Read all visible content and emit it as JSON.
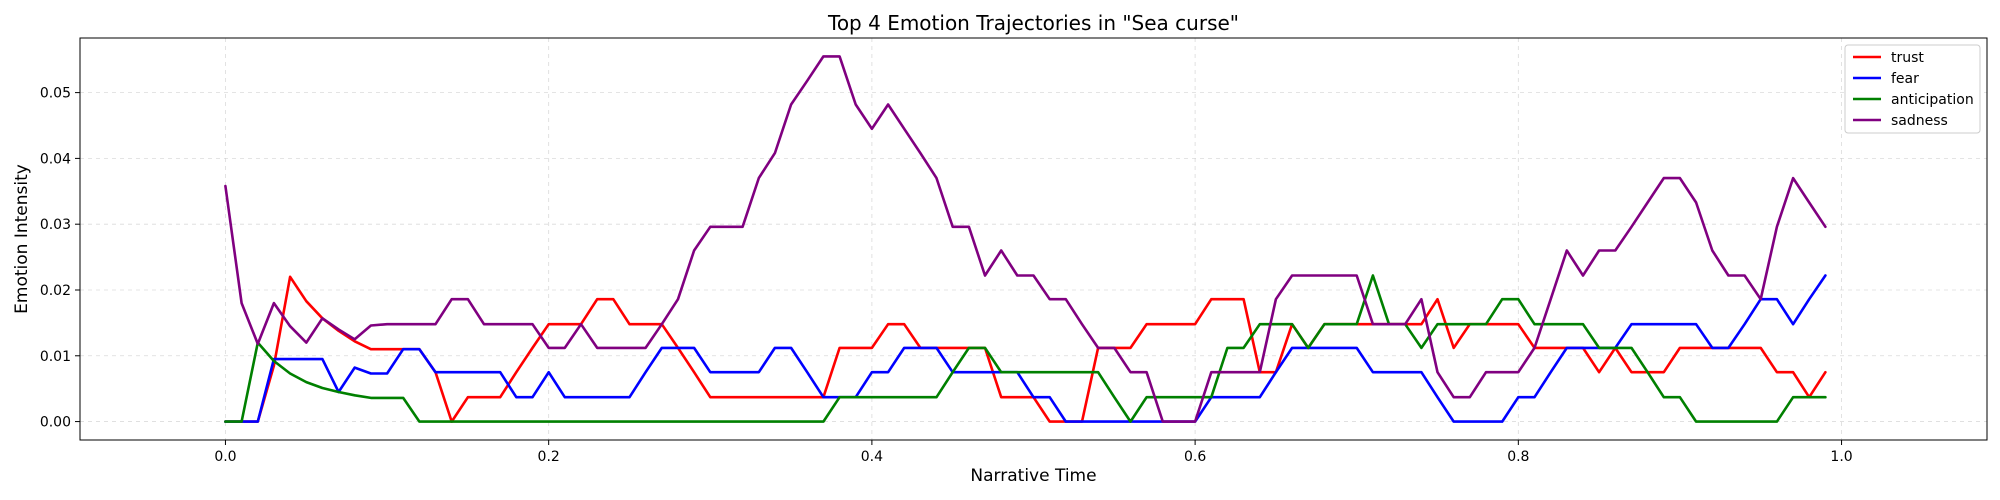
{
  "chart_data": {
    "type": "line",
    "title": "Top 4 Emotion Trajectories in \"Sea curse\"",
    "xlabel": "Narrative Time",
    "ylabel": "Emotion Intensity",
    "xlim": [
      -0.09,
      1.09
    ],
    "ylim": [
      -0.0028,
      0.0583
    ],
    "xticks": [
      0.0,
      0.2,
      0.4,
      0.6,
      0.8,
      1.0
    ],
    "xtick_labels": [
      "0.0",
      "0.2",
      "0.4",
      "0.6",
      "0.8",
      "1.0"
    ],
    "yticks": [
      0.0,
      0.01,
      0.02,
      0.03,
      0.04,
      0.05
    ],
    "ytick_labels": [
      "0.00",
      "0.01",
      "0.02",
      "0.03",
      "0.04",
      "0.05"
    ],
    "grid": true,
    "legend_position": "top-right",
    "x": [
      0.0,
      0.01,
      0.02,
      0.03,
      0.04,
      0.05,
      0.06,
      0.07,
      0.08,
      0.09,
      0.1,
      0.11,
      0.12,
      0.13,
      0.14,
      0.15,
      0.16,
      0.17,
      0.18,
      0.19,
      0.2,
      0.21,
      0.22,
      0.23,
      0.24,
      0.25,
      0.26,
      0.27,
      0.28,
      0.29,
      0.3,
      0.31,
      0.32,
      0.33,
      0.34,
      0.35,
      0.36,
      0.37,
      0.38,
      0.39,
      0.4,
      0.41,
      0.42,
      0.43,
      0.44,
      0.45,
      0.46,
      0.47,
      0.48,
      0.49,
      0.5,
      0.51,
      0.52,
      0.53,
      0.54,
      0.55,
      0.56,
      0.57,
      0.58,
      0.59,
      0.6,
      0.61,
      0.62,
      0.63,
      0.64,
      0.65,
      0.66,
      0.67,
      0.68,
      0.69,
      0.7,
      0.71,
      0.72,
      0.73,
      0.74,
      0.75,
      0.76,
      0.77,
      0.78,
      0.79,
      0.8,
      0.81,
      0.82,
      0.83,
      0.84,
      0.85,
      0.86,
      0.87,
      0.88,
      0.89,
      0.9,
      0.91,
      0.92,
      0.93,
      0.94,
      0.95,
      0.96,
      0.97,
      0.98,
      0.99
    ],
    "series": [
      {
        "name": "trust",
        "color": "#ff0000",
        "values": [
          0,
          0,
          0,
          0.0085,
          0.022,
          0.0183,
          0.0157,
          0.0138,
          0.0122,
          0.011,
          0.011,
          0.011,
          0.011,
          0.0075,
          0,
          0.0037,
          0.0037,
          0.0037,
          0.0075,
          0.0112,
          0.0148,
          0.0148,
          0.0148,
          0.0186,
          0.0186,
          0.0148,
          0.0148,
          0.0148,
          0.0112,
          0.0075,
          0.0037,
          0.0037,
          0.0037,
          0.0037,
          0.0037,
          0.0037,
          0.0037,
          0.0037,
          0.0112,
          0.0112,
          0.0112,
          0.0148,
          0.0148,
          0.0112,
          0.0112,
          0.0112,
          0.0112,
          0.0112,
          0.0037,
          0.0037,
          0.0037,
          0,
          0,
          0,
          0.0112,
          0.0112,
          0.0112,
          0.0148,
          0.0148,
          0.0148,
          0.0148,
          0.0186,
          0.0186,
          0.0186,
          0.0075,
          0.0075,
          0.0148,
          0.0112,
          0.0148,
          0.0148,
          0.0148,
          0.0148,
          0.0148,
          0.0148,
          0.0148,
          0.0186,
          0.0112,
          0.0148,
          0.0148,
          0.0148,
          0.0148,
          0.0112,
          0.0112,
          0.0112,
          0.0112,
          0.0075,
          0.0112,
          0.0075,
          0.0075,
          0.0075,
          0.0112,
          0.0112,
          0.0112,
          0.0112,
          0.0112,
          0.0112,
          0.0075,
          0.0075,
          0.0037,
          0.0075
        ]
      },
      {
        "name": "fear",
        "color": "#0000ff",
        "values": [
          0,
          0,
          0,
          0.0095,
          0.0095,
          0.0095,
          0.0095,
          0.0045,
          0.0082,
          0.0073,
          0.0073,
          0.011,
          0.011,
          0.0075,
          0.0075,
          0.0075,
          0.0075,
          0.0075,
          0.0037,
          0.0037,
          0.0075,
          0.0037,
          0.0037,
          0.0037,
          0.0037,
          0.0037,
          0.0075,
          0.0112,
          0.0112,
          0.0112,
          0.0075,
          0.0075,
          0.0075,
          0.0075,
          0.0112,
          0.0112,
          0.0075,
          0.0037,
          0.0037,
          0.0037,
          0.0075,
          0.0075,
          0.0112,
          0.0112,
          0.0112,
          0.0075,
          0.0075,
          0.0075,
          0.0075,
          0.0075,
          0.0037,
          0.0037,
          0,
          0,
          0,
          0,
          0,
          0,
          0,
          0,
          0,
          0.0037,
          0.0037,
          0.0037,
          0.0037,
          0.0075,
          0.0112,
          0.0112,
          0.0112,
          0.0112,
          0.0112,
          0.0075,
          0.0075,
          0.0075,
          0.0075,
          0.0037,
          0,
          0,
          0,
          0,
          0.0037,
          0.0037,
          0.0075,
          0.0112,
          0.0112,
          0.0112,
          0.0112,
          0.0148,
          0.0148,
          0.0148,
          0.0148,
          0.0148,
          0.0112,
          0.0112,
          0.0148,
          0.0186,
          0.0186,
          0.0148,
          0.0186,
          0.0222
        ]
      },
      {
        "name": "anticipation",
        "color": "#008000",
        "values": [
          0,
          0,
          0.012,
          0.0092,
          0.0073,
          0.006,
          0.0051,
          0.0045,
          0.004,
          0.0036,
          0.0036,
          0.0036,
          0,
          0,
          0,
          0,
          0,
          0,
          0,
          0,
          0,
          0,
          0,
          0,
          0,
          0,
          0,
          0,
          0,
          0,
          0,
          0,
          0,
          0,
          0,
          0,
          0,
          0,
          0.0037,
          0.0037,
          0.0037,
          0.0037,
          0.0037,
          0.0037,
          0.0037,
          0.0075,
          0.0112,
          0.0112,
          0.0075,
          0.0075,
          0.0075,
          0.0075,
          0.0075,
          0.0075,
          0.0075,
          0.0037,
          0,
          0.0037,
          0.0037,
          0.0037,
          0.0037,
          0.0037,
          0.0112,
          0.0112,
          0.0148,
          0.0148,
          0.0148,
          0.0112,
          0.0148,
          0.0148,
          0.0148,
          0.0222,
          0.0148,
          0.0148,
          0.0112,
          0.0148,
          0.0148,
          0.0148,
          0.0148,
          0.0186,
          0.0186,
          0.0148,
          0.0148,
          0.0148,
          0.0148,
          0.0112,
          0.0112,
          0.0112,
          0.0075,
          0.0037,
          0.0037,
          0,
          0,
          0,
          0,
          0,
          0,
          0.0037,
          0.0037,
          0.0037
        ]
      },
      {
        "name": "sadness",
        "color": "#800080",
        "values": [
          0.0358,
          0.018,
          0.0118,
          0.018,
          0.0145,
          0.012,
          0.0157,
          0.014,
          0.0125,
          0.0146,
          0.0148,
          0.0148,
          0.0148,
          0.0148,
          0.0186,
          0.0186,
          0.0148,
          0.0148,
          0.0148,
          0.0148,
          0.0112,
          0.0112,
          0.0148,
          0.0112,
          0.0112,
          0.0112,
          0.0112,
          0.0148,
          0.0186,
          0.026,
          0.0296,
          0.0296,
          0.0296,
          0.037,
          0.0408,
          0.0482,
          0.0518,
          0.0555,
          0.0555,
          0.0482,
          0.0445,
          0.0482,
          0.0445,
          0.0408,
          0.037,
          0.0296,
          0.0296,
          0.0222,
          0.026,
          0.0222,
          0.0222,
          0.0186,
          0.0186,
          0.0148,
          0.0112,
          0.0112,
          0.0075,
          0.0075,
          0,
          0,
          0,
          0.0075,
          0.0075,
          0.0075,
          0.0075,
          0.0186,
          0.0222,
          0.0222,
          0.0222,
          0.0222,
          0.0222,
          0.0148,
          0.0148,
          0.0148,
          0.0186,
          0.0075,
          0.0037,
          0.0037,
          0.0075,
          0.0075,
          0.0075,
          0.0112,
          0.0186,
          0.026,
          0.0222,
          0.026,
          0.026,
          0.0296,
          0.0333,
          0.037,
          0.037,
          0.0333,
          0.026,
          0.0222,
          0.0222,
          0.0186,
          0.0296,
          0.037,
          0.0333,
          0.0296
        ]
      }
    ]
  }
}
